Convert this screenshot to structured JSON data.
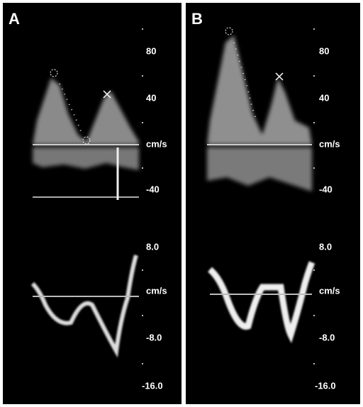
{
  "panels": [
    {
      "label": "A",
      "upper_scale": [
        "80",
        "40",
        "cm/s",
        "-40"
      ],
      "lower_scale": [
        "8.0",
        "cm/s",
        "-8.0",
        "-16.0"
      ]
    },
    {
      "label": "B",
      "upper_scale": [
        "80",
        "40",
        "cm/s",
        "-40"
      ],
      "lower_scale": [
        "8.0",
        "cm/s",
        "-8.0",
        "-16.0"
      ]
    }
  ]
}
